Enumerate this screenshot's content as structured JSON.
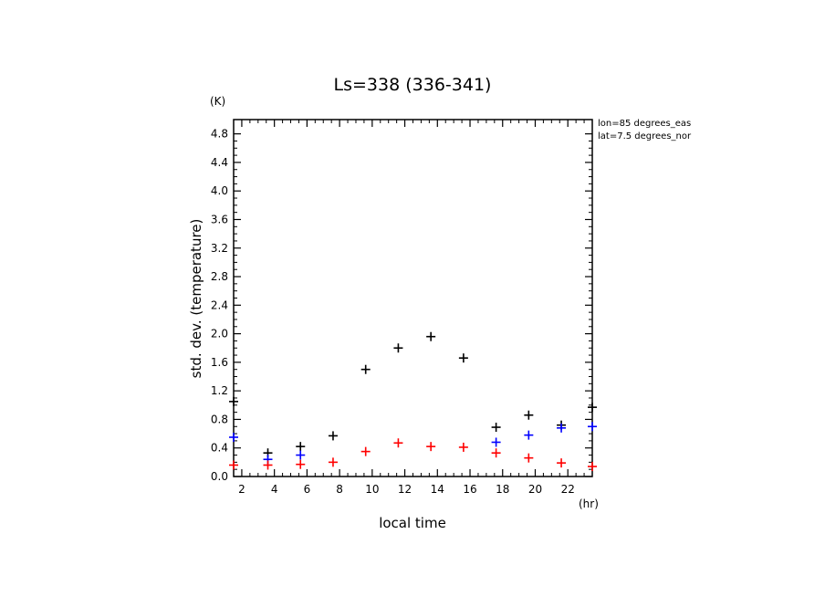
{
  "chart_data": {
    "type": "scatter",
    "title": "Ls=338 (336-341)",
    "xlabel": "local time",
    "ylabel": "std. dev. (temperature)",
    "xunit": "(hr)",
    "yunit": "(K)",
    "xlim": [
      1.5,
      23.5
    ],
    "ylim": [
      0.0,
      5.0
    ],
    "xticks": [
      2,
      4,
      6,
      8,
      10,
      12,
      14,
      16,
      18,
      20,
      22
    ],
    "yticks": [
      0.0,
      0.4,
      0.8,
      1.2,
      1.6,
      2.0,
      2.4,
      2.8,
      3.2,
      3.6,
      4.0,
      4.4,
      4.8
    ],
    "grid": false,
    "annotations": [
      "lon=85 degrees_eas",
      "lat=7.5 degrees_nor"
    ],
    "series": [
      {
        "color": "#000000",
        "points": [
          [
            1.5,
            1.05
          ],
          [
            3.6,
            0.33
          ],
          [
            5.6,
            0.42
          ],
          [
            7.6,
            0.57
          ],
          [
            9.6,
            1.5
          ],
          [
            11.6,
            1.8
          ],
          [
            13.6,
            1.96
          ],
          [
            15.6,
            1.66
          ],
          [
            17.6,
            0.69
          ],
          [
            19.6,
            0.86
          ],
          [
            21.6,
            0.72
          ],
          [
            23.5,
            0.97
          ]
        ]
      },
      {
        "color": "#0000ff",
        "points": [
          [
            1.5,
            0.55
          ],
          [
            3.6,
            0.24
          ],
          [
            5.6,
            0.3
          ],
          [
            17.6,
            0.48
          ],
          [
            19.6,
            0.58
          ],
          [
            21.6,
            0.68
          ],
          [
            23.5,
            0.7
          ]
        ]
      },
      {
        "color": "#ff0000",
        "points": [
          [
            1.5,
            0.16
          ],
          [
            3.6,
            0.16
          ],
          [
            5.6,
            0.17
          ],
          [
            7.6,
            0.2
          ],
          [
            9.6,
            0.35
          ],
          [
            11.6,
            0.47
          ],
          [
            13.6,
            0.42
          ],
          [
            15.6,
            0.41
          ],
          [
            17.6,
            0.33
          ],
          [
            19.6,
            0.26
          ],
          [
            21.6,
            0.19
          ],
          [
            23.5,
            0.14
          ]
        ]
      }
    ]
  }
}
